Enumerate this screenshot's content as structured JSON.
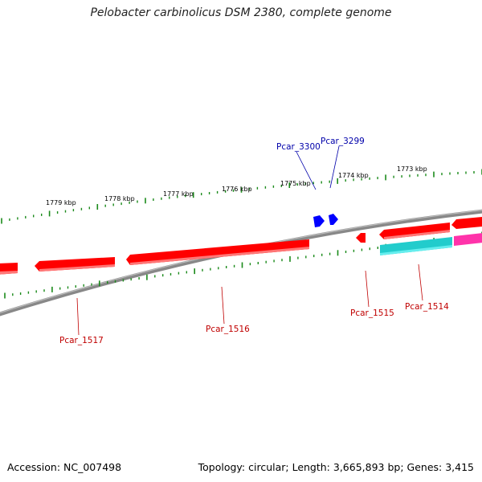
{
  "title": "Pelobacter carbinolicus DSM 2380, complete genome",
  "footer": {
    "accession": "Accession: NC_007498",
    "stats": "Topology: circular; Length: 3,665,893 bp; Genes: 3,415"
  },
  "colors": {
    "backbone": "#888888",
    "ticks": "#1a8a1a",
    "gene_red": "#ff0000",
    "gene_cyan": "#22cccc",
    "gene_magenta": "#ff33aa",
    "gene_blue": "#0000ff",
    "label_red": "#c00000",
    "label_blue": "#0000aa"
  },
  "ruler": {
    "labels": [
      "1779 kbp",
      "1778 kbp",
      "1777 kbp",
      "1776 kbp",
      "1775 kbp",
      "1774 kbp",
      "1773 kbp"
    ]
  },
  "genes": [
    {
      "id": "Pcar_1517",
      "color": "red"
    },
    {
      "id": "Pcar_1516",
      "color": "red"
    },
    {
      "id": "Pcar_1515",
      "color": "red"
    },
    {
      "id": "Pcar_1514",
      "color": "cyan"
    },
    {
      "id": "Pcar_3300",
      "color": "blue"
    },
    {
      "id": "Pcar_3299",
      "color": "blue"
    }
  ]
}
